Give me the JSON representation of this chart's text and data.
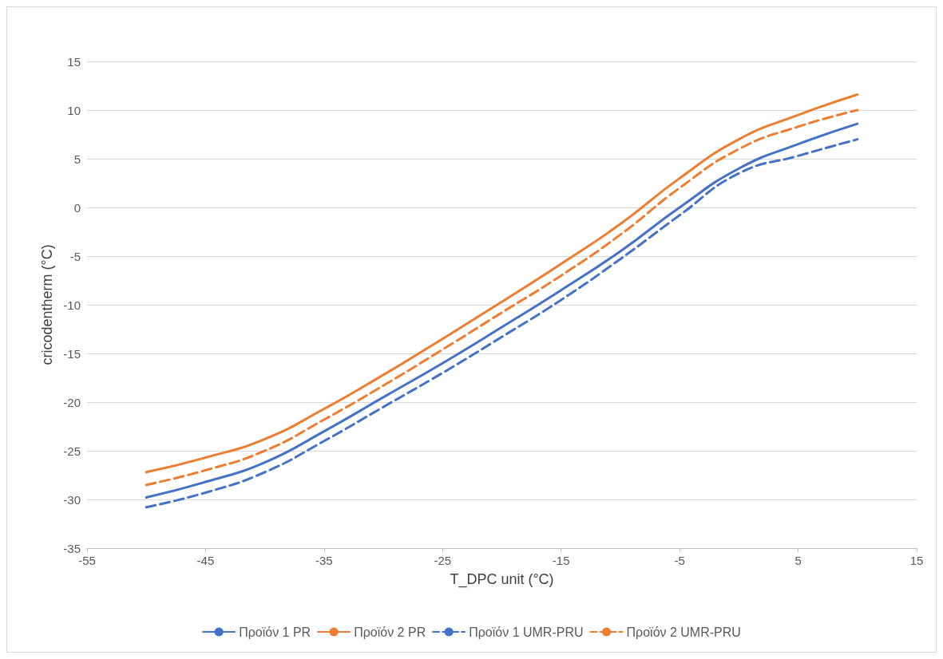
{
  "chart_data": {
    "type": "line",
    "xlabel": "T_DPC unit (°C)",
    "ylabel": "cricodentherm (°C)",
    "x": [
      -50,
      -45,
      -40,
      -35,
      -30,
      -25,
      -20,
      -15,
      -10,
      -5,
      0,
      5,
      10
    ],
    "series": [
      {
        "name": "Προϊόν 1 PR",
        "color": "#4472c4",
        "line_style": "solid",
        "values": [
          -29.8,
          -28.2,
          -26.2,
          -23,
          -19.5,
          -16,
          -12.3,
          -8.5,
          -4.5,
          0,
          4,
          6.5,
          8.6
        ]
      },
      {
        "name": "Προϊόν 2 PR",
        "color": "#ed7d31",
        "line_style": "solid",
        "values": [
          -27.2,
          -25.7,
          -23.8,
          -20.7,
          -17.2,
          -13.5,
          -9.7,
          -5.8,
          -1.7,
          3,
          7,
          9.5,
          11.6
        ]
      },
      {
        "name": "Προϊόν 1 UMR-PRU",
        "color": "#4472c4",
        "line_style": "dashed",
        "values": [
          -30.8,
          -29.3,
          -27.2,
          -24,
          -20.5,
          -17,
          -13.3,
          -9.5,
          -5.3,
          -0.8,
          3.5,
          5.3,
          7
        ]
      },
      {
        "name": "Προϊόν 2 UMR-PRU",
        "color": "#ed7d31",
        "line_style": "dashed",
        "values": [
          -28.5,
          -27,
          -25,
          -21.8,
          -18.3,
          -14.6,
          -10.8,
          -7,
          -2.8,
          2,
          6,
          8.3,
          10
        ]
      }
    ],
    "xlim": [
      -55,
      15
    ],
    "xticks": [
      -55,
      -45,
      -35,
      -25,
      -15,
      -5,
      5,
      15
    ],
    "ylim": [
      -35,
      15
    ],
    "yticks": [
      -35,
      -30,
      -25,
      -20,
      -15,
      -10,
      -5,
      0,
      5,
      10,
      15
    ],
    "grid": "y",
    "legend": "bottom",
    "marker": "none"
  }
}
